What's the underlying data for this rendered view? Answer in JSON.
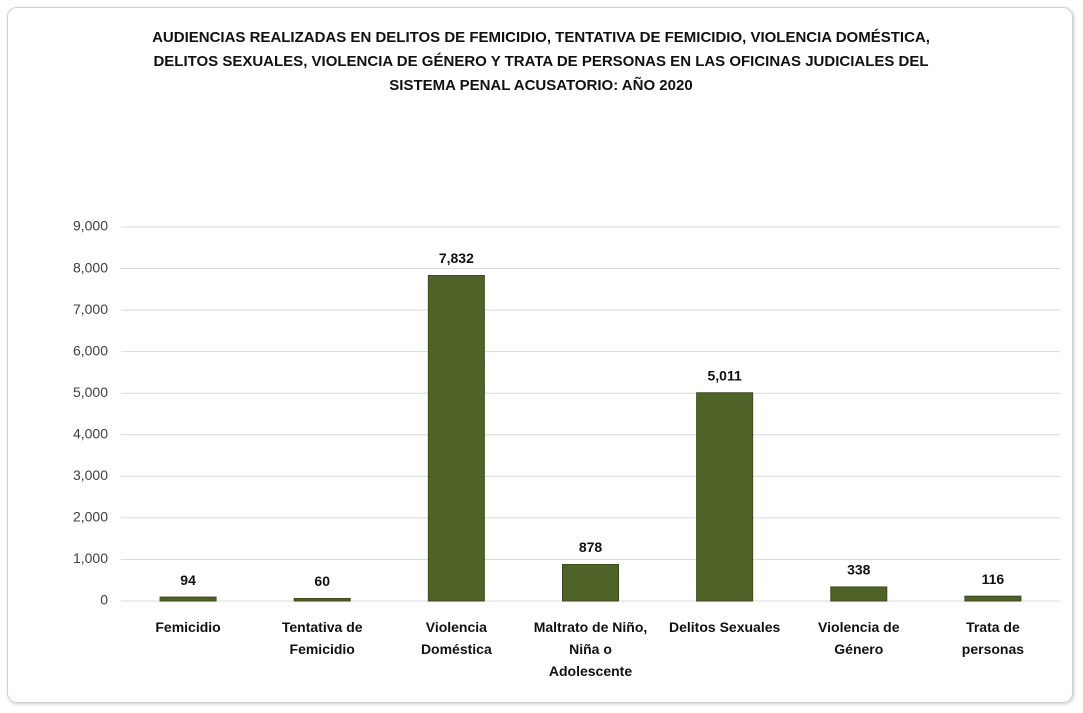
{
  "chart_data": {
    "type": "bar",
    "title": "AUDIENCIAS REALIZADAS EN DELITOS DE FEMICIDIO, TENTATIVA DE FEMICIDIO, VIOLENCIA DOMÉSTICA, DELITOS SEXUALES, VIOLENCIA DE GÉNERO Y TRATA DE PERSONAS EN LAS OFICINAS JUDICIALES DEL SISTEMA PENAL ACUSATORIO: AÑO 2020",
    "categories": [
      "Femicidio",
      "Tentativa de Femicidio",
      "Violencia Doméstica",
      "Maltrato de Niño, Niña o Adolescente",
      "Delitos Sexuales",
      "Violencia de Género",
      "Trata de personas"
    ],
    "values": [
      94,
      60,
      7832,
      878,
      5011,
      338,
      116
    ],
    "value_labels": [
      "94",
      "60",
      "7,832",
      "878",
      "5,011",
      "338",
      "116"
    ],
    "color": "#4f6228",
    "ylim": [
      0,
      9000
    ],
    "yticks": [
      0,
      {
        "value": 1000,
        "label": "1,000"
      },
      {
        "value": 2000,
        "label": "2,000"
      },
      {
        "value": 3000,
        "label": "3,000"
      },
      {
        "value": 4000,
        "label": "4,000"
      },
      {
        "value": 5000,
        "label": "5,000"
      },
      {
        "value": 6000,
        "label": "6,000"
      },
      {
        "value": 7000,
        "label": "7,000"
      },
      {
        "value": 8000,
        "label": "8,000"
      },
      {
        "value": 9000,
        "label": "9,000"
      }
    ],
    "grid": true
  }
}
